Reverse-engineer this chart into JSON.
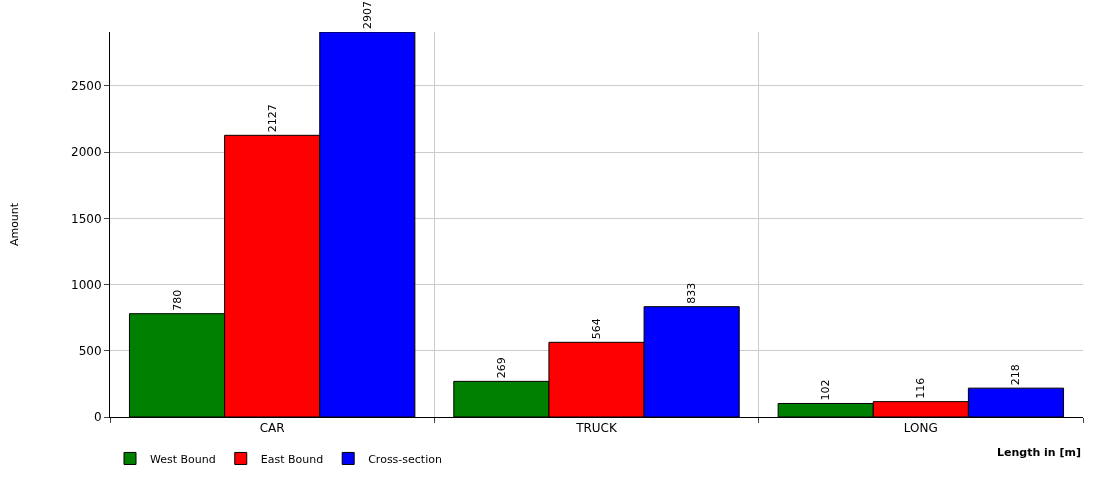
{
  "chart_data": {
    "type": "bar",
    "categories": [
      "CAR",
      "TRUCK",
      "LONG"
    ],
    "xlabel": "Length in [m]",
    "ylabel": "Amount",
    "series": [
      {
        "name": "West Bound",
        "color": "#008000",
        "values": [
          780,
          269,
          102
        ]
      },
      {
        "name": "East Bound",
        "color": "#ff0000",
        "values": [
          2127,
          564,
          116
        ]
      },
      {
        "name": "Cross-section",
        "color": "#0000ff",
        "values": [
          2907,
          833,
          218
        ]
      }
    ],
    "ylim": [
      0,
      2907
    ],
    "yticks": [
      0,
      500,
      1000,
      1500,
      2000,
      2500
    ],
    "grid": true,
    "legend": "bottom left",
    "data_labels": true
  }
}
